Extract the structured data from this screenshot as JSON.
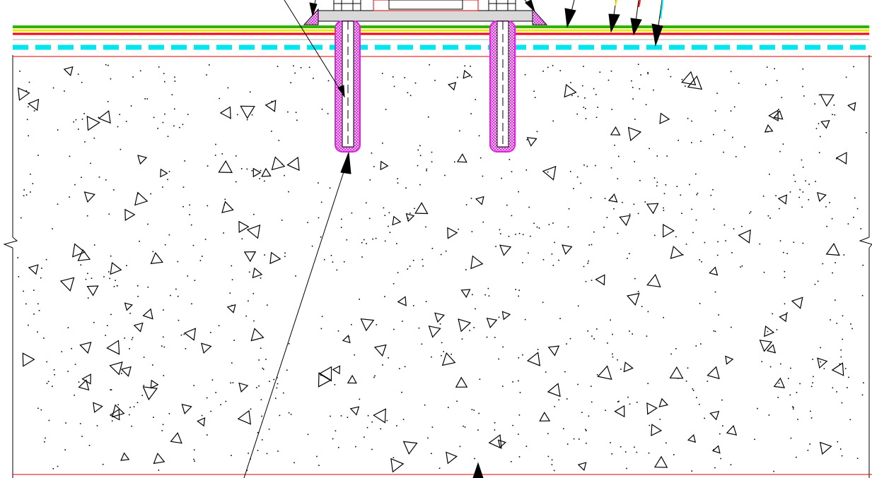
{
  "drawing": {
    "kind": "cad-section-detail",
    "background": "#ffffff",
    "line_color": "#000000",
    "colors": {
      "green_layer": "#2fb300",
      "yellow_layer": "#f2e600",
      "red_layer": "#ff0000",
      "dashed_cyan_layer": "#00e5ee",
      "sealant_hatch": "#e020e0",
      "base_plate": "#d9d9d9",
      "thin_red_line": "#e00000",
      "cyan_leader": "#00e5ee"
    },
    "texts": []
  }
}
